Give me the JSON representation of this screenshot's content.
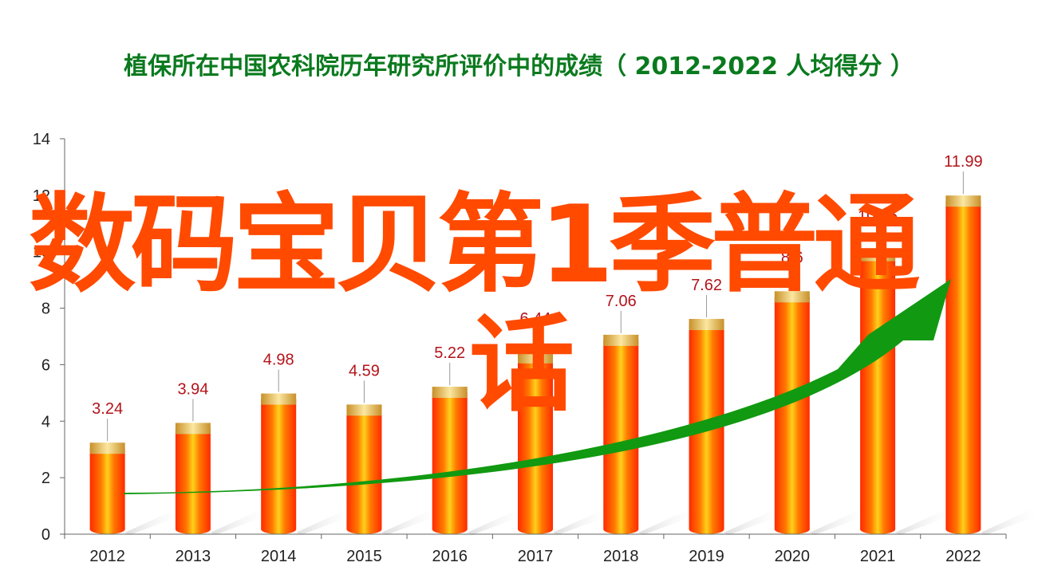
{
  "chart_data": {
    "type": "bar",
    "title": "植保所在中国农科院历年研究所评价中的成绩（ 2012-2022  人均得分 ）",
    "xlabel": "",
    "ylabel": "",
    "ylim": [
      0,
      14
    ],
    "yticks": [
      0,
      2,
      4,
      6,
      8,
      10,
      12,
      14
    ],
    "categories": [
      "2012",
      "2013",
      "2014",
      "2015",
      "2016",
      "2017",
      "2018",
      "2019",
      "2020",
      "2021",
      "2022"
    ],
    "values": [
      3.24,
      3.94,
      4.98,
      4.59,
      5.22,
      6.44,
      7.06,
      7.62,
      8.6,
      10.06,
      11.99
    ],
    "data_labels": [
      "3.24",
      "3.94",
      "4.98",
      "4.59",
      "5.22",
      "6.44",
      "7.06",
      "7.62",
      "8.6",
      "10.06",
      "11.99"
    ],
    "grid": false,
    "legend": "none",
    "colors": {
      "bar": "#ff3300",
      "bar_highlight": "#ffd11a",
      "cap": "#e8b84a",
      "trend_arrow": "#119911",
      "label": "#b3141a",
      "title": "#0a7a1e"
    }
  },
  "overlay": {
    "line1": "数码宝贝第1季普通",
    "line2": "话",
    "color": "#ff4a00"
  }
}
